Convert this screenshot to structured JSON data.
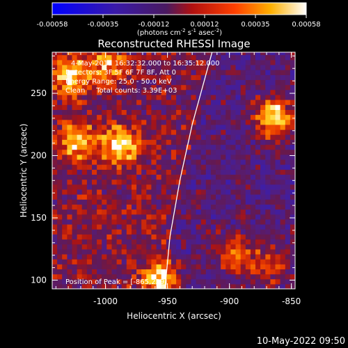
{
  "colorbar": {
    "ticks": [
      "-0.00058",
      "-0.00035",
      "-0.00012",
      "0.00012",
      "0.00035",
      "0.00058"
    ],
    "units_prefix": "(photons cm",
    "units_exp1": "-2",
    "units_mid": " s",
    "units_exp2": "-1",
    "units_mid2": " asec",
    "units_exp3": "-2",
    "units_suffix": ")"
  },
  "chart_data": {
    "type": "heatmap",
    "title": "Reconstructed RHESSI Image",
    "xlabel": "Heliocentric X (arcsec)",
    "ylabel": "Heliocentric Y (arcsec)",
    "xlim": [
      -1043,
      -847
    ],
    "ylim": [
      93,
      283
    ],
    "xticks": [
      "-1000",
      "-950",
      "-900",
      "-850"
    ],
    "yticks": [
      "100",
      "150",
      "200",
      "250"
    ],
    "color_range": [
      -0.00058,
      0.00058
    ],
    "colormap": "blue-purple-red-orange-yellow-white",
    "annotations": [
      "4-May-2012 16:32:32.000 to 16:35:12.000",
      "Detectors: 3F 5F 6F 7F 8F, Att 0",
      "Energy Range: 25.0 - 50.0 keV",
      "Clean     Total counts: 3.39E+03"
    ],
    "peak_label": "Position of Peak = [-865,229]",
    "bright_sources": [
      {
        "x": -866,
        "y": 229,
        "level": 1.0
      },
      {
        "x": -990,
        "y": 207,
        "level": 0.8
      },
      {
        "x": -958,
        "y": 100,
        "level": 0.75
      },
      {
        "x": -1030,
        "y": 262,
        "level": 0.7
      },
      {
        "x": -1025,
        "y": 210,
        "level": 0.65
      },
      {
        "x": -898,
        "y": 118,
        "level": 0.6
      },
      {
        "x": -1000,
        "y": 270,
        "level": 0.55
      },
      {
        "x": -870,
        "y": 110,
        "level": 0.5
      }
    ],
    "limb_curve": [
      [
        -914,
        283
      ],
      [
        -930,
        225
      ],
      [
        -940,
        180
      ],
      [
        -948,
        135
      ],
      [
        -952,
        93
      ]
    ]
  },
  "footer": {
    "date": "10-May-2022 09:50"
  },
  "colors": {
    "limb": "#ffffff",
    "background": "#000000"
  }
}
